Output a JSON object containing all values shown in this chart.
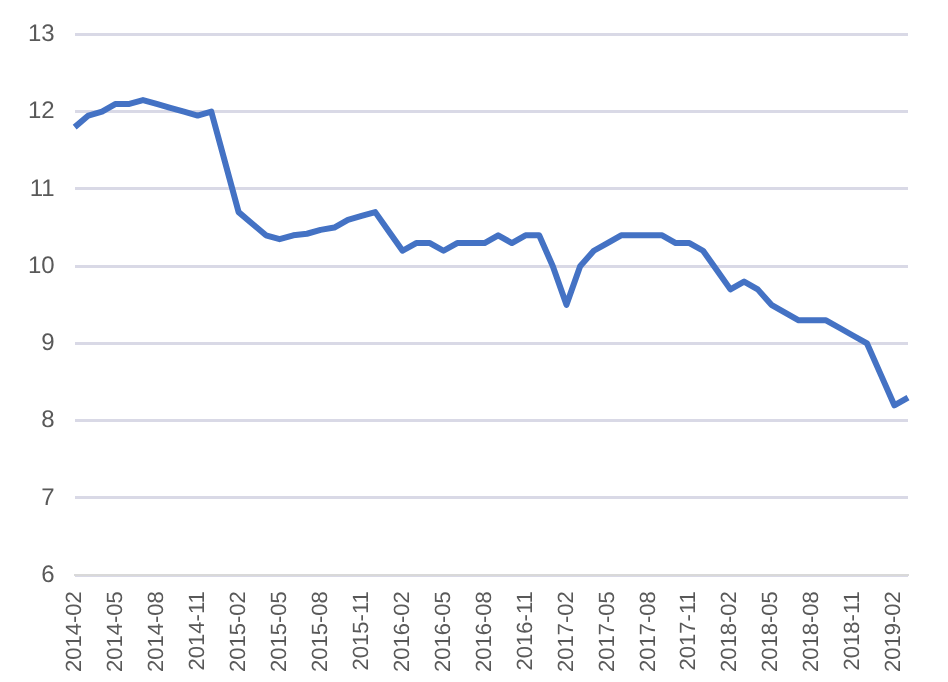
{
  "chart_data": {
    "type": "line",
    "categories": [
      "2014-02",
      null,
      null,
      "2014-05",
      null,
      null,
      "2014-08",
      null,
      null,
      "2014-11",
      null,
      null,
      "2015-02",
      null,
      null,
      "2015-05",
      null,
      null,
      "2015-08",
      null,
      null,
      "2015-11",
      null,
      null,
      "2016-02",
      null,
      null,
      "2016-05",
      null,
      null,
      "2016-08",
      null,
      null,
      "2016-11",
      null,
      null,
      "2017-02",
      null,
      null,
      "2017-05",
      null,
      null,
      "2017-08",
      null,
      null,
      "2017-11",
      null,
      null,
      "2018-02",
      null,
      null,
      "2018-05",
      null,
      null,
      "2018-08",
      null,
      null,
      "2018-11",
      null,
      null,
      "2019-02",
      null
    ],
    "series": [
      {
        "color": "#4472c4",
        "values": [
          11.8,
          11.95,
          12.0,
          12.1,
          12.1,
          12.15,
          12.1,
          12.05,
          12.0,
          11.95,
          12.0,
          11.35,
          10.7,
          10.55,
          10.4,
          10.35,
          10.4,
          10.42,
          10.47,
          10.5,
          10.6,
          10.65,
          10.7,
          10.45,
          10.2,
          10.3,
          10.3,
          10.2,
          10.3,
          10.3,
          10.3,
          10.4,
          10.3,
          10.4,
          10.4,
          10.0,
          9.5,
          10.0,
          10.2,
          10.3,
          10.4,
          10.4,
          10.4,
          10.4,
          10.3,
          10.3,
          10.2,
          9.95,
          9.7,
          9.8,
          9.7,
          9.5,
          9.4,
          9.3,
          9.3,
          9.3,
          9.2,
          9.1,
          9.0,
          8.6,
          8.2,
          8.3
        ]
      }
    ],
    "ylim": [
      6,
      13
    ],
    "yticks": [
      6,
      7,
      8,
      9,
      10,
      11,
      12,
      13
    ],
    "grid": "y",
    "legend": false,
    "marker": "none",
    "line_style": "solid"
  }
}
